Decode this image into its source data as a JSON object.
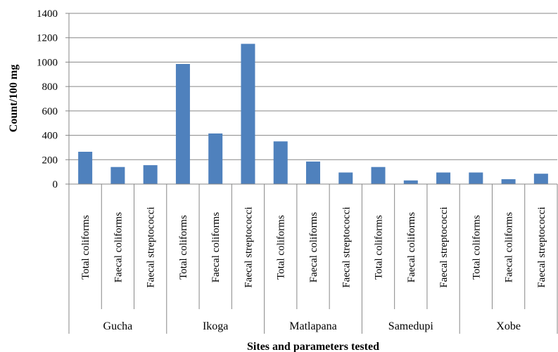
{
  "chart_data": {
    "type": "bar",
    "title": "",
    "xlabel": "Sites and parameters tested",
    "ylabel": "Count/100 mg",
    "ylim": [
      0,
      1400
    ],
    "yticks": [
      0,
      200,
      400,
      600,
      800,
      1000,
      1200,
      1400
    ],
    "grid": true,
    "legend": "none",
    "bar_color": "#4f81bd",
    "groups": [
      {
        "name": "Gucha",
        "categories": [
          "Total coliforms",
          "Faecal coliforms",
          "Faecal streptococci"
        ],
        "values": [
          265,
          140,
          155
        ]
      },
      {
        "name": "Ikoga",
        "categories": [
          "Total coliforms",
          "Faecal coliforms",
          "Faecal streptococci"
        ],
        "values": [
          985,
          415,
          1150
        ]
      },
      {
        "name": "Matlapana",
        "categories": [
          "Total coliforms",
          "Faecal coliforms",
          "Faecal streptococci"
        ],
        "values": [
          350,
          185,
          95
        ]
      },
      {
        "name": "Samedupi",
        "categories": [
          "Total coliforms",
          "Faecal coliforms",
          "Faecal streptococci"
        ],
        "values": [
          140,
          30,
          95
        ]
      },
      {
        "name": "Xobe",
        "categories": [
          "Total coliforms",
          "Faecal coliforms",
          "Faecal streptococci"
        ],
        "values": [
          95,
          40,
          85
        ]
      }
    ]
  }
}
